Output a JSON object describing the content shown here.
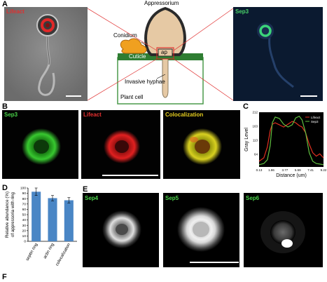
{
  "panels": {
    "A": {
      "label": "A",
      "left_channel": "Lifeact",
      "right_channel": "Sep3",
      "diagram": {
        "appressorium": "Appressorium",
        "conidium": "Conidium",
        "cuticle": "Cuticle",
        "ap": "ap",
        "invasive_hyphae": "Invasive hyphae",
        "plant_cell": "Plant cell"
      }
    },
    "B": {
      "label": "B",
      "channels": [
        "Sep3",
        "Lifeact",
        "Colocalization"
      ]
    },
    "C": {
      "label": "C"
    },
    "D": {
      "label": "D"
    },
    "E": {
      "label": "E",
      "channels": [
        "Sep4",
        "Sep5",
        "Sep6"
      ]
    },
    "F": {
      "label": "F"
    }
  },
  "chart_data": [
    {
      "type": "line",
      "panel": "C",
      "xlabel": "Distance (um)",
      "ylabel": "Gray Level",
      "xticks": [
        "0.13",
        "1.86",
        "3.77",
        "5.59",
        "7.41",
        "9.22"
      ],
      "yticks": [
        "64",
        "113",
        "163",
        "212"
      ],
      "xlim": [
        0.13,
        9.22
      ],
      "ylim": [
        20,
        212
      ],
      "legend_position": "top-right",
      "series": [
        {
          "name": "Lifeact",
          "color": "#e03020",
          "x": [
            0.13,
            0.8,
            1.3,
            1.7,
            2.0,
            2.4,
            3.0,
            3.6,
            4.2,
            4.8,
            5.3,
            5.8,
            6.2,
            6.7,
            7.2,
            7.7,
            8.2,
            8.7,
            9.22
          ],
          "y": [
            40,
            52,
            90,
            148,
            170,
            175,
            168,
            160,
            170,
            180,
            175,
            165,
            160,
            140,
            100,
            70,
            58,
            66,
            52
          ]
        },
        {
          "name": "Sep3",
          "color": "#60c040",
          "x": [
            0.13,
            0.8,
            1.3,
            1.7,
            2.0,
            2.4,
            3.0,
            3.6,
            4.2,
            4.8,
            5.3,
            5.8,
            6.2,
            6.7,
            7.2,
            7.7,
            8.2,
            8.7,
            9.22
          ],
          "y": [
            28,
            32,
            45,
            95,
            175,
            195,
            190,
            170,
            160,
            168,
            192,
            198,
            185,
            140,
            70,
            40,
            32,
            30,
            28
          ]
        }
      ]
    },
    {
      "type": "bar",
      "panel": "D",
      "ylabel": "Relative abundance (%) of appressoria with ring",
      "categories": [
        "septin ring",
        "actin ring",
        "colocalization"
      ],
      "values": [
        93,
        81,
        77
      ],
      "errors": [
        7,
        5,
        5
      ],
      "ylim": [
        0,
        100
      ],
      "yticks": [
        "0",
        "10",
        "20",
        "30",
        "40",
        "50",
        "60",
        "70",
        "80",
        "90",
        "100"
      ],
      "color": "#4a86c5"
    }
  ]
}
